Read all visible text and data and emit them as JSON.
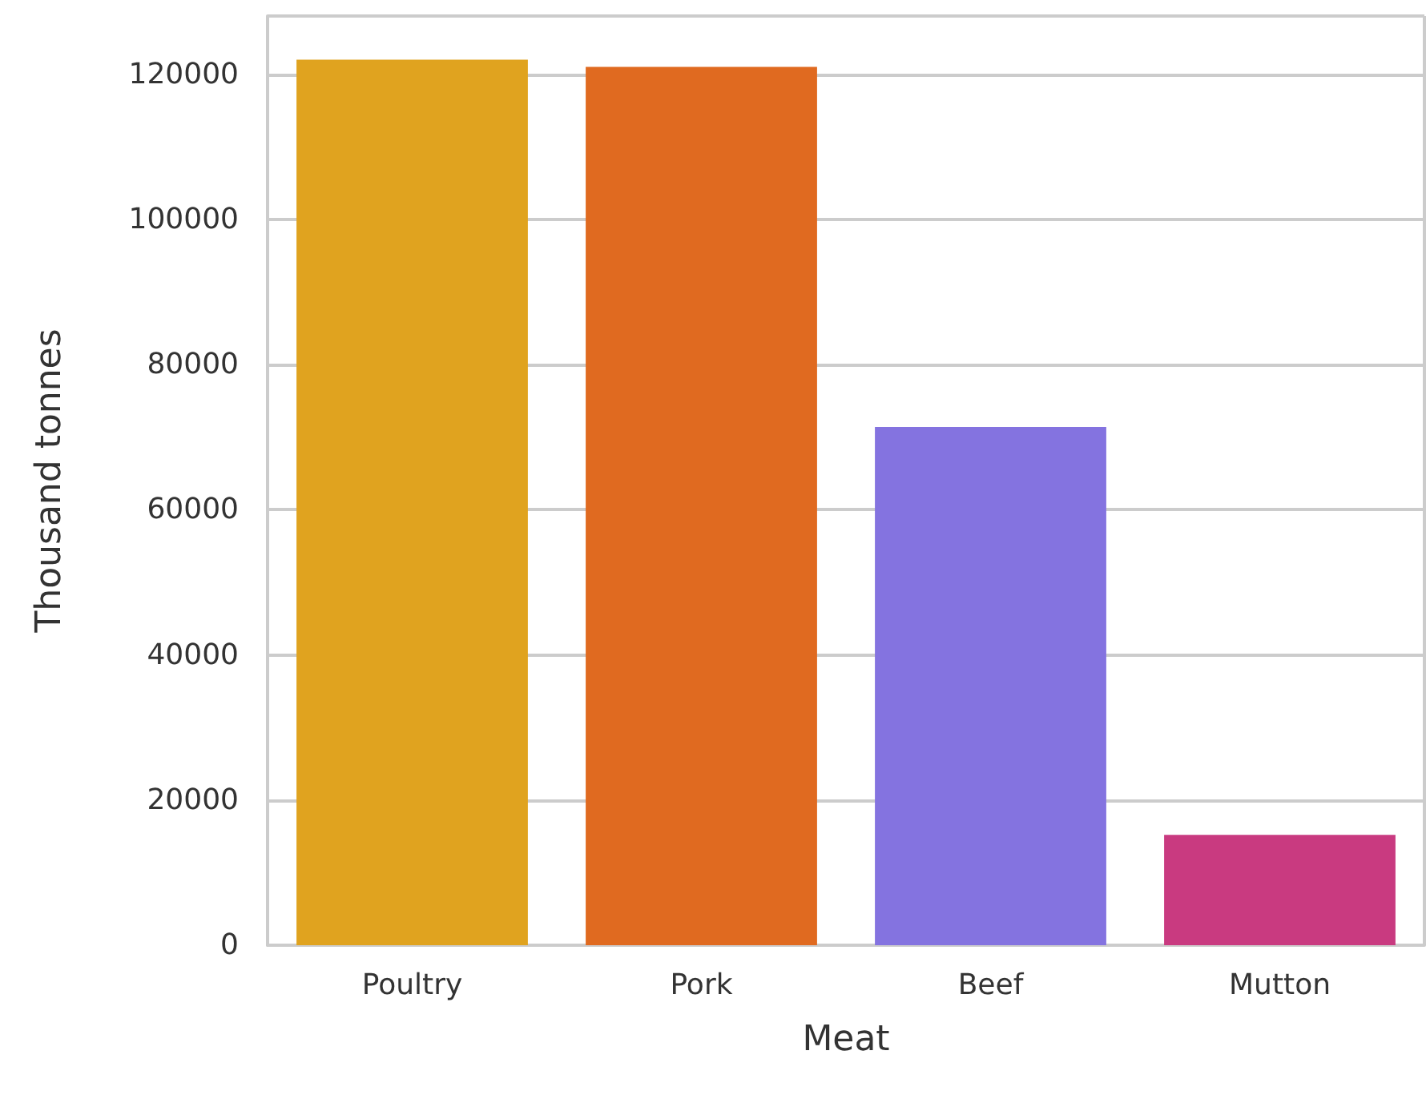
{
  "chart_data": {
    "type": "bar",
    "xlabel": "Meat",
    "ylabel": "Thousand tonnes",
    "categories": [
      "Poultry",
      "Pork",
      "Beef",
      "Mutton"
    ],
    "values": [
      122000,
      121000,
      71400,
      15200
    ],
    "colors": [
      "#e0a31f",
      "#e06a20",
      "#8473e0",
      "#c93a80"
    ],
    "ylim": [
      0,
      128000
    ],
    "yticks": [
      0,
      20000,
      40000,
      60000,
      80000,
      100000,
      120000
    ],
    "grid": "y"
  }
}
